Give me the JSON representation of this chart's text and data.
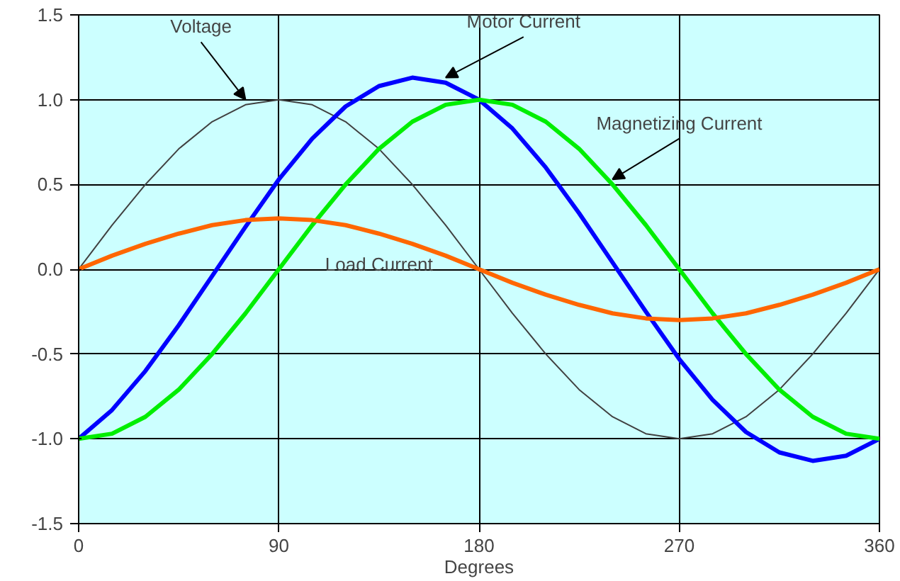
{
  "chart_data": {
    "type": "line",
    "xlabel": "Degrees",
    "x": [
      0,
      15,
      30,
      45,
      60,
      75,
      90,
      105,
      120,
      135,
      150,
      165,
      180,
      195,
      210,
      225,
      240,
      255,
      270,
      285,
      300,
      315,
      330,
      345,
      360
    ],
    "series": [
      {
        "name": "Voltage",
        "color": "#404040",
        "values": [
          0,
          0.26,
          0.5,
          0.71,
          0.87,
          0.97,
          1,
          0.97,
          0.87,
          0.71,
          0.5,
          0.26,
          0,
          -0.26,
          -0.5,
          -0.71,
          -0.87,
          -0.97,
          -1,
          -0.97,
          -0.87,
          -0.71,
          -0.5,
          -0.26,
          0
        ]
      },
      {
        "name": "Motor Current",
        "color": "#0000ff",
        "values": [
          -1.0,
          -0.83,
          -0.6,
          -0.33,
          -0.04,
          0.25,
          0.53,
          0.77,
          0.96,
          1.08,
          1.13,
          1.1,
          1.0,
          0.83,
          0.6,
          0.33,
          0.04,
          -0.25,
          -0.53,
          -0.77,
          -0.96,
          -1.08,
          -1.13,
          -1.1,
          -1.0
        ]
      },
      {
        "name": "Magnetizing Current",
        "color": "#00ee00",
        "values": [
          -1,
          -0.97,
          -0.87,
          -0.71,
          -0.5,
          -0.26,
          0,
          0.26,
          0.5,
          0.71,
          0.87,
          0.97,
          1,
          0.97,
          0.87,
          0.71,
          0.5,
          0.26,
          0,
          -0.26,
          -0.5,
          -0.71,
          -0.87,
          -0.97,
          -1
        ]
      },
      {
        "name": "Load Current",
        "color": "#ff6600",
        "values": [
          0,
          0.08,
          0.15,
          0.21,
          0.26,
          0.29,
          0.3,
          0.29,
          0.26,
          0.21,
          0.15,
          0.08,
          0,
          -0.08,
          -0.15,
          -0.21,
          -0.26,
          -0.29,
          -0.3,
          -0.29,
          -0.26,
          -0.21,
          -0.15,
          -0.08,
          0
        ]
      }
    ],
    "xlim": [
      0,
      360
    ],
    "xticks": [
      0,
      90,
      180,
      270,
      360
    ],
    "ylim": [
      -1.5,
      1.5
    ],
    "yticks": [
      {
        "value": -1.5,
        "label": "-1.5"
      },
      {
        "value": -1,
        "label": "-1.0"
      },
      {
        "value": -0.5,
        "label": "-0.5"
      },
      {
        "value": 0,
        "label": "0.0"
      },
      {
        "value": 0.5,
        "label": "0.5"
      },
      {
        "value": 1,
        "label": "1.0"
      },
      {
        "value": 1.5,
        "label": "1.5"
      }
    ],
    "grid": true,
    "marker": "none",
    "line_style": "solid"
  }
}
